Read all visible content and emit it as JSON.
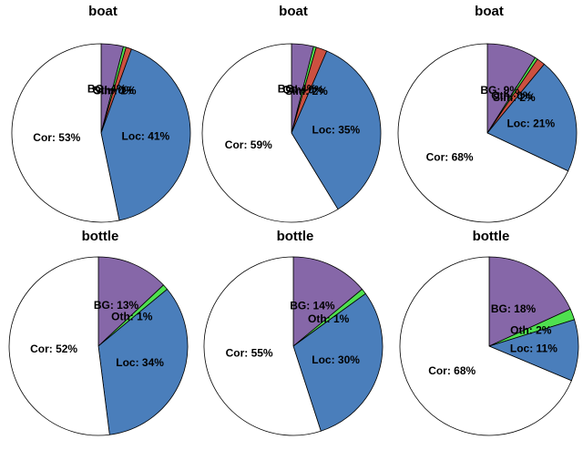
{
  "chart_data": [
    {
      "type": "pie",
      "title": "boat",
      "slices": [
        {
          "label": "BG",
          "value": 4,
          "text": "BG: 4%",
          "color": "#8667a8"
        },
        {
          "label": "Oth",
          "value": 0.5,
          "text": "Oth: 0%",
          "color": "#4fe04f"
        },
        {
          "label": "Sim",
          "value": 1,
          "text": "Sim: 1%",
          "color": "#cc5040"
        },
        {
          "label": "Loc",
          "value": 41,
          "text": "Loc: 41%",
          "color": "#4a7ebb"
        },
        {
          "label": "Cor",
          "value": 53,
          "text": "Cor: 53%",
          "color": "#ffffff"
        }
      ]
    },
    {
      "type": "pie",
      "title": "boat",
      "slices": [
        {
          "label": "BG",
          "value": 4,
          "text": "BG: 4%",
          "color": "#8667a8"
        },
        {
          "label": "Oth",
          "value": 0.5,
          "text": "Oth: 0%",
          "color": "#4fe04f"
        },
        {
          "label": "Sim",
          "value": 2,
          "text": "Sim: 2%",
          "color": "#cc5040"
        },
        {
          "label": "Loc",
          "value": 35,
          "text": "Loc: 35%",
          "color": "#4a7ebb"
        },
        {
          "label": "Cor",
          "value": 59,
          "text": "Cor: 59%",
          "color": "#ffffff"
        }
      ]
    },
    {
      "type": "pie",
      "title": "boat",
      "slices": [
        {
          "label": "BG",
          "value": 9,
          "text": "BG: 9%",
          "color": "#8667a8"
        },
        {
          "label": "Oth",
          "value": 0.5,
          "text": "Oth: 0%",
          "color": "#4fe04f"
        },
        {
          "label": "Sim",
          "value": 1.5,
          "text": "Sim: 2%",
          "color": "#cc5040"
        },
        {
          "label": "Loc",
          "value": 21,
          "text": "Loc: 21%",
          "color": "#4a7ebb"
        },
        {
          "label": "Cor",
          "value": 68,
          "text": "Cor: 68%",
          "color": "#ffffff"
        }
      ]
    },
    {
      "type": "pie",
      "title": "bottle",
      "slices": [
        {
          "label": "BG",
          "value": 13,
          "text": "BG: 13%",
          "color": "#8667a8"
        },
        {
          "label": "Oth",
          "value": 1,
          "text": "Oth: 1%",
          "color": "#4fe04f"
        },
        {
          "label": "Loc",
          "value": 34,
          "text": "Loc: 34%",
          "color": "#4a7ebb"
        },
        {
          "label": "Cor",
          "value": 52,
          "text": "Cor: 52%",
          "color": "#ffffff"
        }
      ]
    },
    {
      "type": "pie",
      "title": "bottle",
      "slices": [
        {
          "label": "BG",
          "value": 14,
          "text": "BG: 14%",
          "color": "#8667a8"
        },
        {
          "label": "Oth",
          "value": 1,
          "text": "Oth: 1%",
          "color": "#4fe04f"
        },
        {
          "label": "Loc",
          "value": 30,
          "text": "Loc: 30%",
          "color": "#4a7ebb"
        },
        {
          "label": "Cor",
          "value": 55,
          "text": "Cor: 55%",
          "color": "#ffffff"
        }
      ]
    },
    {
      "type": "pie",
      "title": "bottle",
      "slices": [
        {
          "label": "BG",
          "value": 18,
          "text": "BG: 18%",
          "color": "#8667a8"
        },
        {
          "label": "Oth",
          "value": 2,
          "text": "Oth: 2%",
          "color": "#4fe04f"
        },
        {
          "label": "Loc",
          "value": 11,
          "text": "Loc: 11%",
          "color": "#4a7ebb"
        },
        {
          "label": "Cor",
          "value": 68,
          "text": "Cor: 68%",
          "color": "#ffffff"
        }
      ]
    }
  ]
}
